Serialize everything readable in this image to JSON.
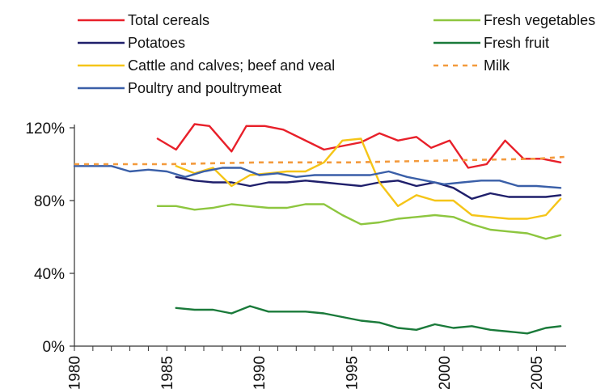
{
  "chart_data": {
    "type": "line",
    "title": "",
    "xlabel": "",
    "ylabel": "",
    "xlim": [
      1980,
      2006.6
    ],
    "ylim": [
      0,
      120
    ],
    "y_ticks": [
      0,
      40,
      80,
      120
    ],
    "y_tick_labels": [
      "0%",
      "40%",
      "80%",
      "120%"
    ],
    "x_ticks": [
      1980,
      1985,
      1990,
      1995,
      2000,
      2005
    ],
    "x_tick_labels": [
      "1980",
      "1985",
      "1990",
      "1995",
      "2000",
      "2005"
    ],
    "grid": false,
    "legend_position": "top",
    "series": [
      {
        "name": "Total cereals",
        "color": "#e8202a",
        "dashed": false,
        "x": [
          1984.5,
          1985.5,
          1986.5,
          1987.3,
          1988.5,
          1989.3,
          1990.3,
          1991.3,
          1992.3,
          1993.5,
          1994.5,
          1995.5,
          1996.5,
          1997.5,
          1998.5,
          1999.3,
          2000.3,
          2001.3,
          2002.3,
          2003.3,
          2004.3,
          2005.3,
          2006.3
        ],
        "y": [
          114,
          108,
          122,
          121,
          107,
          121,
          121,
          119,
          114,
          108,
          110,
          112,
          117,
          113,
          115,
          109,
          113,
          98,
          100,
          113,
          103,
          103,
          101
        ]
      },
      {
        "name": "Potatoes",
        "color": "#1f1f6b",
        "dashed": false,
        "x": [
          1985.5,
          1986.5,
          1987.5,
          1988.5,
          1989.5,
          1990.5,
          1991.5,
          1992.5,
          1993.5,
          1994.5,
          1995.5,
          1996.5,
          1997.5,
          1998.5,
          1999.5,
          2000.5,
          2001.5,
          2002.5,
          2003.5,
          2004.5,
          2005.5,
          2006.3
        ],
        "y": [
          93,
          91,
          90,
          90,
          88,
          90,
          90,
          91,
          90,
          89,
          88,
          90,
          91,
          88,
          90,
          87,
          81,
          84,
          82,
          82,
          82,
          83
        ]
      },
      {
        "name": "Cattle and calves; beef and veal",
        "color": "#f5c518",
        "dashed": false,
        "x": [
          1985.5,
          1986.5,
          1987.5,
          1988.5,
          1989.5,
          1990.5,
          1991.5,
          1992.5,
          1993.5,
          1994.5,
          1995.5,
          1996.5,
          1997.5,
          1998.5,
          1999.5,
          2000.5,
          2001.5,
          2002.5,
          2003.5,
          2004.5,
          2005.5,
          2006.3
        ],
        "y": [
          99,
          95,
          98,
          88,
          94,
          95,
          96,
          96,
          101,
          113,
          114,
          90,
          77,
          83,
          80,
          80,
          72,
          71,
          70,
          70,
          72,
          81
        ]
      },
      {
        "name": "Poultry and poultrymeat",
        "color": "#3a5fa8",
        "dashed": false,
        "x": [
          1980,
          1981,
          1982,
          1983,
          1984,
          1985,
          1986,
          1987,
          1988,
          1989,
          1990,
          1991,
          1992,
          1993,
          1994,
          1995,
          1996,
          1997,
          1998,
          1999,
          2000,
          2001,
          2002,
          2003,
          2004,
          2005,
          2006.3
        ],
        "y": [
          99,
          99,
          99,
          96,
          97,
          96,
          93,
          96,
          98,
          98,
          94,
          95,
          93,
          94,
          94,
          94,
          94,
          96,
          93,
          91,
          89,
          90,
          91,
          91,
          88,
          88,
          87
        ]
      },
      {
        "name": "Fresh vegetables",
        "color": "#8dc63f",
        "dashed": false,
        "x": [
          1984.5,
          1985.5,
          1986.5,
          1987.5,
          1988.5,
          1989.5,
          1990.5,
          1991.5,
          1992.5,
          1993.5,
          1994.5,
          1995.5,
          1996.5,
          1997.5,
          1998.5,
          1999.5,
          2000.5,
          2001.5,
          2002.5,
          2003.5,
          2004.5,
          2005.5,
          2006.3
        ],
        "y": [
          77,
          77,
          75,
          76,
          78,
          77,
          76,
          76,
          78,
          78,
          72,
          67,
          68,
          70,
          71,
          72,
          71,
          67,
          64,
          63,
          62,
          59,
          61
        ]
      },
      {
        "name": "Fresh fruit",
        "color": "#1a7a3a",
        "dashed": false,
        "x": [
          1985.5,
          1986.5,
          1987.5,
          1988.5,
          1989.5,
          1990.5,
          1991.5,
          1992.5,
          1993.5,
          1994.5,
          1995.5,
          1996.5,
          1997.5,
          1998.5,
          1999.5,
          2000.5,
          2001.5,
          2002.5,
          2003.5,
          2004.5,
          2005.5,
          2006.3
        ],
        "y": [
          21,
          20,
          20,
          18,
          22,
          19,
          19,
          19,
          18,
          16,
          14,
          13,
          10,
          9,
          12,
          10,
          11,
          9,
          8,
          7,
          10,
          11
        ]
      },
      {
        "name": "Milk",
        "color": "#f39a3c",
        "dashed": true,
        "x": [
          1980,
          1985,
          1990,
          1995,
          2000,
          2005,
          2006.5
        ],
        "y": [
          100,
          100,
          101,
          101,
          102,
          103,
          104
        ]
      }
    ],
    "legend_columns": [
      [
        "Total cereals",
        "Potatoes",
        "Cattle and calves; beef and veal",
        "Poultry and poultrymeat"
      ],
      [
        "Fresh vegetables",
        "Fresh fruit",
        "Milk"
      ]
    ]
  }
}
